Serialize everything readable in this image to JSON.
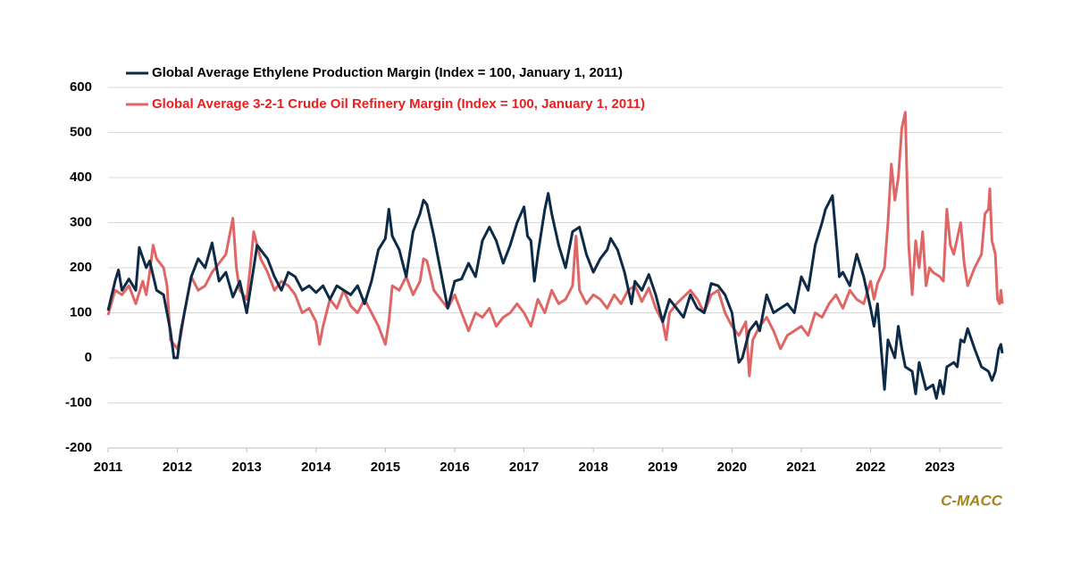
{
  "chart_data": {
    "type": "line",
    "source": "C-MACC",
    "xlim": [
      2011,
      2023.9
    ],
    "xticks": [
      2011,
      2012,
      2013,
      2014,
      2015,
      2016,
      2017,
      2018,
      2019,
      2020,
      2021,
      2022,
      2023
    ],
    "ylim": [
      -200,
      600
    ],
    "yticks": [
      -200,
      -100,
      0,
      100,
      200,
      300,
      400,
      500,
      600
    ],
    "grid": true,
    "series": [
      {
        "name": "Global Average Ethylene Production Margin (Index = 100, January 1, 2011)",
        "color": "#0d2a47",
        "x": [
          2011.0,
          2011.1,
          2011.15,
          2011.2,
          2011.3,
          2011.4,
          2011.45,
          2011.55,
          2011.6,
          2011.7,
          2011.8,
          2011.9,
          2011.95,
          2012.0,
          2012.05,
          2012.1,
          2012.2,
          2012.3,
          2012.4,
          2012.5,
          2012.6,
          2012.7,
          2012.8,
          2012.9,
          2013.0,
          2013.1,
          2013.15,
          2013.3,
          2013.4,
          2013.5,
          2013.6,
          2013.7,
          2013.8,
          2013.9,
          2014.0,
          2014.1,
          2014.2,
          2014.3,
          2014.4,
          2014.5,
          2014.6,
          2014.7,
          2014.8,
          2014.9,
          2015.0,
          2015.05,
          2015.1,
          2015.2,
          2015.3,
          2015.4,
          2015.5,
          2015.55,
          2015.6,
          2015.7,
          2015.8,
          2015.9,
          2016.0,
          2016.1,
          2016.2,
          2016.3,
          2016.4,
          2016.5,
          2016.6,
          2016.7,
          2016.8,
          2016.9,
          2017.0,
          2017.05,
          2017.1,
          2017.15,
          2017.2,
          2017.3,
          2017.35,
          2017.4,
          2017.5,
          2017.6,
          2017.7,
          2017.8,
          2017.9,
          2018.0,
          2018.1,
          2018.2,
          2018.25,
          2018.35,
          2018.45,
          2018.55,
          2018.6,
          2018.7,
          2018.8,
          2018.9,
          2019.0,
          2019.1,
          2019.2,
          2019.3,
          2019.4,
          2019.5,
          2019.6,
          2019.7,
          2019.8,
          2019.9,
          2020.0,
          2020.05,
          2020.1,
          2020.15,
          2020.25,
          2020.35,
          2020.4,
          2020.5,
          2020.6,
          2020.7,
          2020.8,
          2020.9,
          2021.0,
          2021.1,
          2021.2,
          2021.3,
          2021.35,
          2021.45,
          2021.5,
          2021.55,
          2021.6,
          2021.7,
          2021.8,
          2021.9,
          2022.0,
          2022.05,
          2022.1,
          2022.2,
          2022.25,
          2022.35,
          2022.4,
          2022.45,
          2022.5,
          2022.6,
          2022.65,
          2022.7,
          2022.8,
          2022.9,
          2022.95,
          2023.0,
          2023.05,
          2023.1,
          2023.2,
          2023.25,
          2023.3,
          2023.35,
          2023.4,
          2023.5,
          2023.6,
          2023.7,
          2023.75,
          2023.8,
          2023.85,
          2023.88,
          2023.9
        ],
        "values": [
          105,
          170,
          195,
          150,
          175,
          150,
          245,
          200,
          215,
          150,
          140,
          60,
          0,
          0,
          60,
          100,
          180,
          220,
          200,
          255,
          170,
          190,
          135,
          170,
          100,
          200,
          250,
          220,
          180,
          150,
          190,
          180,
          150,
          160,
          145,
          160,
          130,
          160,
          150,
          140,
          160,
          120,
          170,
          240,
          265,
          330,
          270,
          240,
          180,
          280,
          320,
          350,
          340,
          270,
          190,
          110,
          170,
          175,
          210,
          180,
          260,
          290,
          260,
          210,
          250,
          300,
          335,
          270,
          260,
          170,
          230,
          330,
          365,
          320,
          250,
          200,
          280,
          290,
          230,
          190,
          220,
          240,
          265,
          240,
          190,
          120,
          170,
          150,
          185,
          140,
          80,
          130,
          110,
          90,
          140,
          110,
          100,
          165,
          160,
          140,
          100,
          40,
          -10,
          0,
          60,
          80,
          60,
          140,
          100,
          110,
          120,
          100,
          180,
          150,
          250,
          300,
          330,
          360,
          270,
          180,
          190,
          160,
          230,
          180,
          110,
          70,
          120,
          -70,
          40,
          0,
          70,
          20,
          -20,
          -30,
          -80,
          -10,
          -70,
          -60,
          -90,
          -50,
          -80,
          -20,
          -10,
          -20,
          40,
          35,
          65,
          20,
          -20,
          -30,
          -50,
          -30,
          20,
          30,
          10
        ]
      },
      {
        "name": "Global Average 3-2-1 Crude Oil Refinery Margin (Index = 100, January 1, 2011)",
        "color": "#e06666",
        "label_color": "#e8201f",
        "x": [
          2011.0,
          2011.1,
          2011.2,
          2011.3,
          2011.4,
          2011.5,
          2011.55,
          2011.6,
          2011.65,
          2011.7,
          2011.8,
          2011.85,
          2011.9,
          2012.0,
          2012.05,
          2012.1,
          2012.2,
          2012.3,
          2012.4,
          2012.5,
          2012.6,
          2012.7,
          2012.8,
          2012.85,
          2012.9,
          2013.0,
          2013.05,
          2013.1,
          2013.2,
          2013.3,
          2013.4,
          2013.5,
          2013.6,
          2013.7,
          2013.8,
          2013.9,
          2014.0,
          2014.05,
          2014.1,
          2014.2,
          2014.3,
          2014.4,
          2014.5,
          2014.6,
          2014.7,
          2014.8,
          2014.9,
          2015.0,
          2015.05,
          2015.1,
          2015.2,
          2015.3,
          2015.4,
          2015.5,
          2015.55,
          2015.6,
          2015.7,
          2015.8,
          2015.9,
          2016.0,
          2016.1,
          2016.2,
          2016.3,
          2016.4,
          2016.5,
          2016.6,
          2016.7,
          2016.8,
          2016.9,
          2017.0,
          2017.1,
          2017.2,
          2017.3,
          2017.4,
          2017.5,
          2017.6,
          2017.7,
          2017.75,
          2017.8,
          2017.9,
          2018.0,
          2018.1,
          2018.2,
          2018.3,
          2018.4,
          2018.5,
          2018.6,
          2018.7,
          2018.8,
          2018.9,
          2019.0,
          2019.05,
          2019.1,
          2019.2,
          2019.3,
          2019.4,
          2019.5,
          2019.6,
          2019.7,
          2019.8,
          2019.9,
          2020.0,
          2020.1,
          2020.2,
          2020.25,
          2020.3,
          2020.4,
          2020.5,
          2020.6,
          2020.7,
          2020.8,
          2020.9,
          2021.0,
          2021.1,
          2021.2,
          2021.3,
          2021.4,
          2021.5,
          2021.6,
          2021.7,
          2021.8,
          2021.9,
          2022.0,
          2022.05,
          2022.1,
          2022.2,
          2022.25,
          2022.3,
          2022.35,
          2022.4,
          2022.45,
          2022.5,
          2022.55,
          2022.6,
          2022.65,
          2022.7,
          2022.75,
          2022.8,
          2022.85,
          2022.9,
          2023.0,
          2023.05,
          2023.1,
          2023.15,
          2023.2,
          2023.3,
          2023.35,
          2023.4,
          2023.5,
          2023.6,
          2023.65,
          2023.7,
          2023.72,
          2023.75,
          2023.8,
          2023.83,
          2023.86,
          2023.88,
          2023.9
        ],
        "values": [
          95,
          150,
          140,
          160,
          120,
          170,
          140,
          190,
          250,
          220,
          200,
          160,
          40,
          20,
          50,
          100,
          180,
          150,
          160,
          190,
          210,
          230,
          310,
          200,
          150,
          130,
          200,
          280,
          220,
          190,
          150,
          170,
          160,
          140,
          100,
          110,
          80,
          30,
          70,
          130,
          110,
          150,
          115,
          100,
          130,
          100,
          70,
          30,
          80,
          160,
          150,
          180,
          140,
          170,
          220,
          215,
          150,
          130,
          110,
          140,
          100,
          60,
          100,
          90,
          110,
          70,
          90,
          100,
          120,
          100,
          70,
          130,
          100,
          150,
          120,
          130,
          160,
          270,
          150,
          120,
          140,
          130,
          110,
          140,
          120,
          150,
          160,
          125,
          155,
          110,
          80,
          40,
          100,
          120,
          135,
          150,
          130,
          100,
          140,
          150,
          100,
          70,
          50,
          80,
          -40,
          40,
          70,
          90,
          60,
          20,
          50,
          60,
          70,
          50,
          100,
          90,
          120,
          140,
          110,
          150,
          130,
          120,
          170,
          130,
          165,
          200,
          300,
          430,
          350,
          400,
          510,
          545,
          250,
          140,
          260,
          200,
          280,
          160,
          200,
          190,
          180,
          170,
          330,
          250,
          230,
          300,
          210,
          160,
          200,
          230,
          320,
          330,
          375,
          260,
          230,
          130,
          120,
          150,
          120
        ]
      }
    ]
  }
}
